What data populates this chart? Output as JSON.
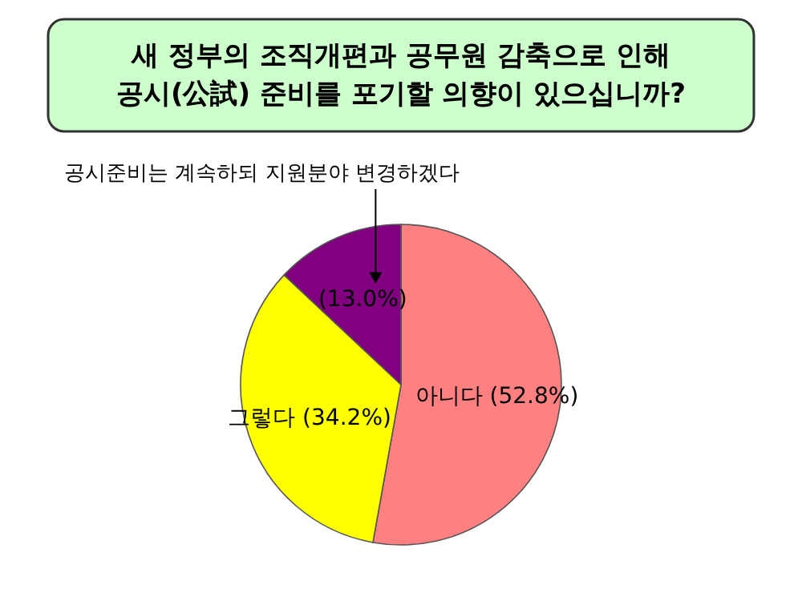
{
  "chart_data": {
    "type": "pie",
    "title": "새 정부의 조직개편과 공무원 감축으로 인해 공시(公試) 준비를 포기할 의향이 있으십니까?",
    "categories": [
      "아니다",
      "그렇다",
      "공시준비는 계속하되 지원분야 변경하겠다"
    ],
    "values": [
      52.8,
      34.2,
      13.0
    ],
    "colors": [
      "#ff8080",
      "#ffff00",
      "#800080"
    ],
    "value_labels": [
      "(52.8%)",
      "(34.2%)",
      "(13.0%)"
    ]
  }
}
